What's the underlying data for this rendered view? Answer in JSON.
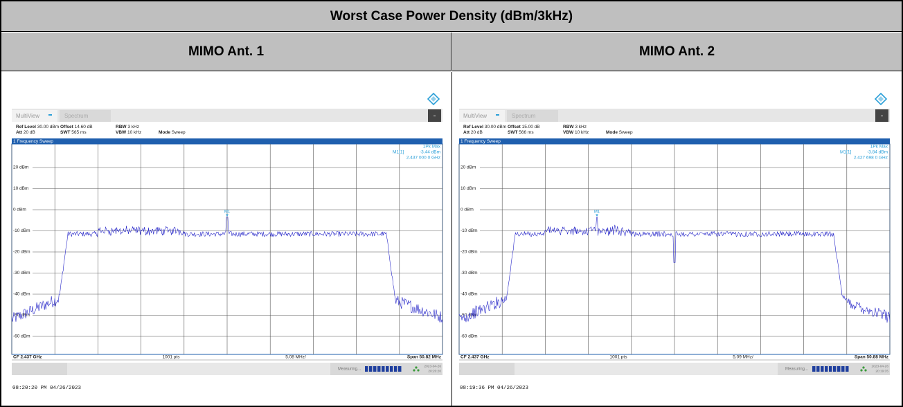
{
  "table": {
    "title": "Worst Case Power Density (dBm/3kHz)",
    "columns": [
      "MIMO Ant. 1",
      "MIMO Ant. 2"
    ],
    "screenshots": [
      {
        "tabs": [
          "MultiView",
          "Spectrum"
        ],
        "settings": [
          [
            {
              "label": "Ref Level",
              "value": "30.00 dBm"
            },
            {
              "label": "Offset",
              "value": "14.60 dB"
            },
            {
              "label": "RBW",
              "value": "3 kHz"
            }
          ],
          [
            {
              "label": "Att",
              "value": "20 dB"
            },
            {
              "label": "SWT",
              "value": "565 ms"
            },
            {
              "label": "VBW",
              "value": "10 kHz"
            },
            {
              "label": "Mode",
              "value": "Sweep"
            }
          ]
        ],
        "panel": "1 Frequency Sweep",
        "detector": "1Pk Max",
        "marker_name": "M1[1]",
        "marker_level": "-3.44 dBm",
        "marker_freq": "2.437 000 0 GHz",
        "marker_label": "M1",
        "y_labels": [
          "20 dBm",
          "10 dBm",
          "0 dBm",
          "-10 dBm",
          "-20 dBm",
          "-30 dBm",
          "-40 dBm",
          "-50 dBm",
          "-60 dBm"
        ],
        "cf": "CF 2.437 GHz",
        "pts": "1001 pts",
        "div": "5.08 MHz/",
        "span": "Span 50.82 MHz",
        "status": "Measuring...",
        "date": "2023-04-26",
        "time": "20:20:20",
        "footer": "08:20:20 PM  04/26/2023"
      },
      {
        "tabs": [
          "MultiView",
          "Spectrum"
        ],
        "settings": [
          [
            {
              "label": "Ref Level",
              "value": "30.00 dBm"
            },
            {
              "label": "Offset",
              "value": "15.00 dB"
            },
            {
              "label": "RBW",
              "value": "3 kHz"
            }
          ],
          [
            {
              "label": "Att",
              "value": "20 dB"
            },
            {
              "label": "SWT",
              "value": "566 ms"
            },
            {
              "label": "VBW",
              "value": "10 kHz"
            },
            {
              "label": "Mode",
              "value": "Sweep"
            }
          ]
        ],
        "panel": "1 Frequency Sweep",
        "detector": "1Pk Max",
        "marker_name": "M1[1]",
        "marker_level": "-3.84 dBm",
        "marker_freq": "2.427 698 0 GHz",
        "marker_label": "M1",
        "y_labels": [
          "20 dBm",
          "10 dBm",
          "0 dBm",
          "-10 dBm",
          "-20 dBm",
          "-30 dBm",
          "-40 dBm",
          "-50 dBm",
          "-60 dBm"
        ],
        "cf": "CF 2.437 GHz",
        "pts": "1001 pts",
        "div": "5.09 MHz/",
        "span": "Span 50.88 MHz",
        "status": "Measuring...",
        "date": "2023-04-26",
        "time": "20:19:35",
        "footer": "08:19:36 PM  04/26/2023"
      }
    ]
  }
}
